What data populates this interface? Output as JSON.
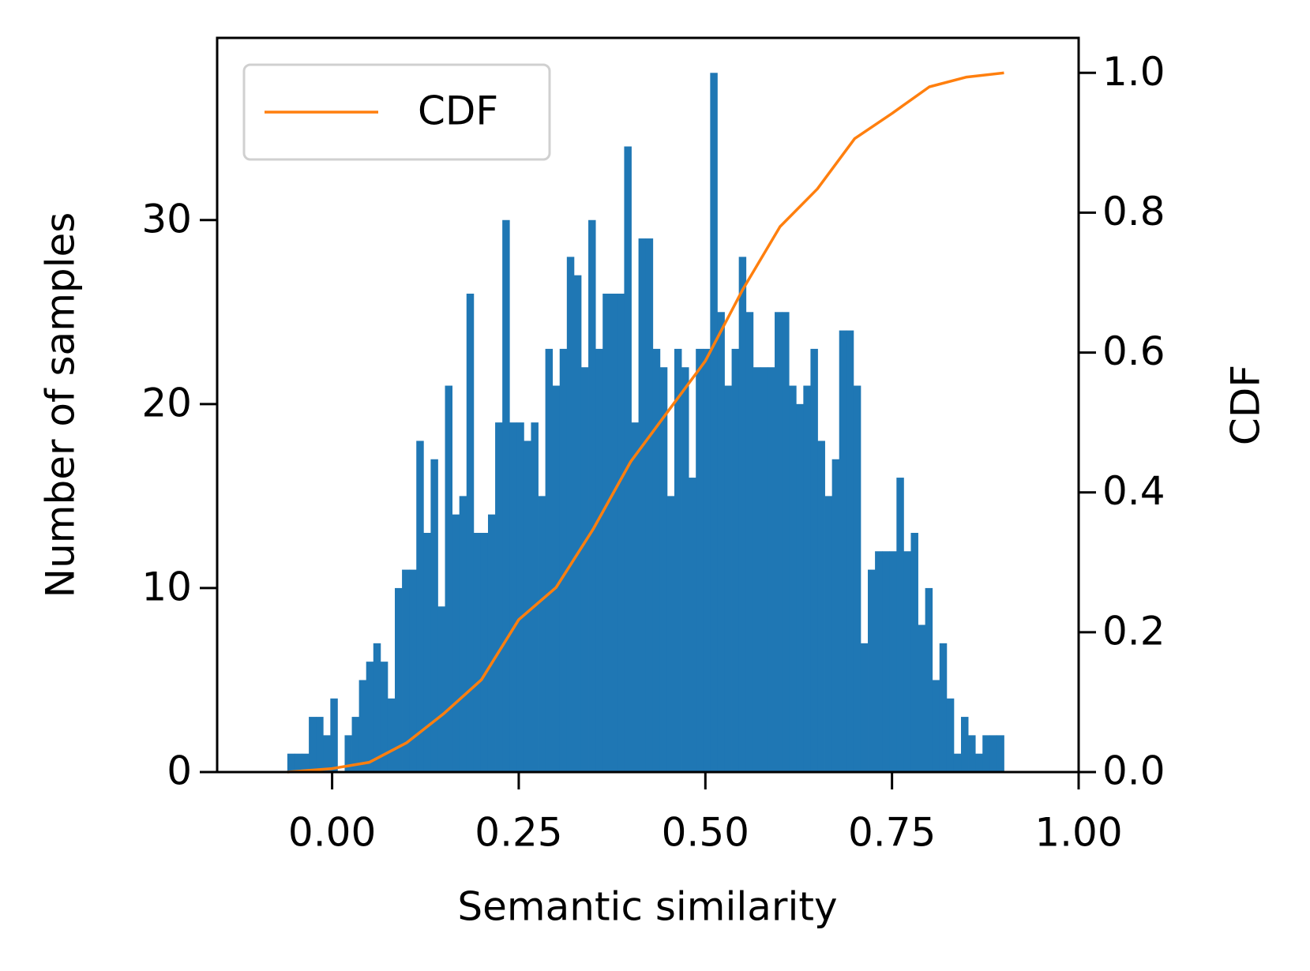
{
  "chart_data": {
    "type": "histogram",
    "x_label": "Semantic similarity",
    "y_label": "Number of samples",
    "y2_label": "CDF",
    "color": "#1f77b4",
    "bins": [
      -0.06,
      -0.0504,
      -0.0408,
      -0.0312,
      -0.0216,
      -0.012,
      -0.0024,
      0.0072,
      0.0168,
      0.0264,
      0.036,
      0.0456,
      0.0552,
      0.0648,
      0.0744,
      0.084,
      0.0936,
      0.1032,
      0.1128,
      0.1224,
      0.132,
      0.1416,
      0.1512,
      0.1608,
      0.1704,
      0.18,
      0.1896,
      0.1992,
      0.2088,
      0.2184,
      0.228,
      0.2376,
      0.2472,
      0.2568,
      0.2664,
      0.276,
      0.2856,
      0.2952,
      0.3048,
      0.3144,
      0.324,
      0.3336,
      0.3432,
      0.3528,
      0.3624,
      0.372,
      0.3816,
      0.3912,
      0.4008,
      0.4104,
      0.42,
      0.4296,
      0.4392,
      0.4488,
      0.4584,
      0.468,
      0.4776,
      0.4872,
      0.4968,
      0.5064,
      0.516,
      0.5256,
      0.5352,
      0.5448,
      0.5544,
      0.564,
      0.5736,
      0.5832,
      0.5928,
      0.6024,
      0.612,
      0.6216,
      0.6312,
      0.6408,
      0.6504,
      0.66,
      0.6696,
      0.6792,
      0.6888,
      0.6984,
      0.708,
      0.7176,
      0.7272,
      0.7368,
      0.7464,
      0.756,
      0.7656,
      0.7752,
      0.7848,
      0.7944,
      0.804,
      0.8136,
      0.8232,
      0.8328,
      0.8424,
      0.852,
      0.8616,
      0.8712,
      0.8808,
      0.8904,
      0.9
    ],
    "values": [
      1,
      1,
      1,
      3,
      3,
      2,
      4,
      0,
      2,
      3,
      5,
      6,
      7,
      6,
      4,
      10,
      11,
      11,
      18,
      13,
      17,
      9,
      21,
      14,
      15,
      26,
      13,
      13,
      14,
      19,
      30,
      19,
      19,
      18,
      19,
      15,
      23,
      21,
      23,
      28,
      27,
      22,
      30,
      23,
      26,
      26,
      26,
      34,
      19,
      29,
      29,
      23,
      22,
      15,
      23,
      22,
      16,
      23,
      23,
      38,
      25,
      21,
      23,
      28,
      25,
      22,
      22,
      22,
      25,
      25,
      21,
      20,
      21,
      23,
      18,
      15,
      17,
      24,
      24,
      21,
      7,
      11,
      12,
      12,
      12,
      16,
      12,
      13,
      8,
      10,
      5,
      7,
      4,
      1,
      3,
      2,
      1,
      2,
      2,
      2
    ],
    "xlim": [
      -0.154,
      1.0
    ],
    "xticks": [
      {
        "value": 0,
        "label": "0.00"
      },
      0.25,
      {
        "value": 0.5,
        "label": "0.50"
      },
      0.75,
      {
        "value": 1,
        "label": "1.00"
      }
    ],
    "ylim": [
      0,
      39.9
    ],
    "yticks": [
      0,
      10,
      20,
      30
    ],
    "y2lim": [
      0,
      1.05
    ],
    "y2ticks": [
      {
        "value": 0,
        "label": "0.0"
      },
      0.2,
      0.4,
      0.6,
      0.8,
      {
        "value": 1,
        "label": "1.0"
      }
    ],
    "series": [
      {
        "name": "CDF",
        "color": "#ff7f0e",
        "axis": "y2",
        "x": [
          -0.06,
          0.0,
          0.05,
          0.1,
          0.15,
          0.2,
          0.25,
          0.3,
          0.35,
          0.4,
          0.45,
          0.5,
          0.55,
          0.6,
          0.65,
          0.7,
          0.75,
          0.8,
          0.85,
          0.9
        ],
        "values": [
          0.0,
          0.005,
          0.014,
          0.042,
          0.084,
          0.132,
          0.218,
          0.264,
          0.348,
          0.444,
          0.516,
          0.588,
          0.69,
          0.78,
          0.834,
          0.906,
          0.942,
          0.98,
          0.994,
          1.0
        ]
      }
    ],
    "grid": false,
    "legend": "upper left"
  }
}
